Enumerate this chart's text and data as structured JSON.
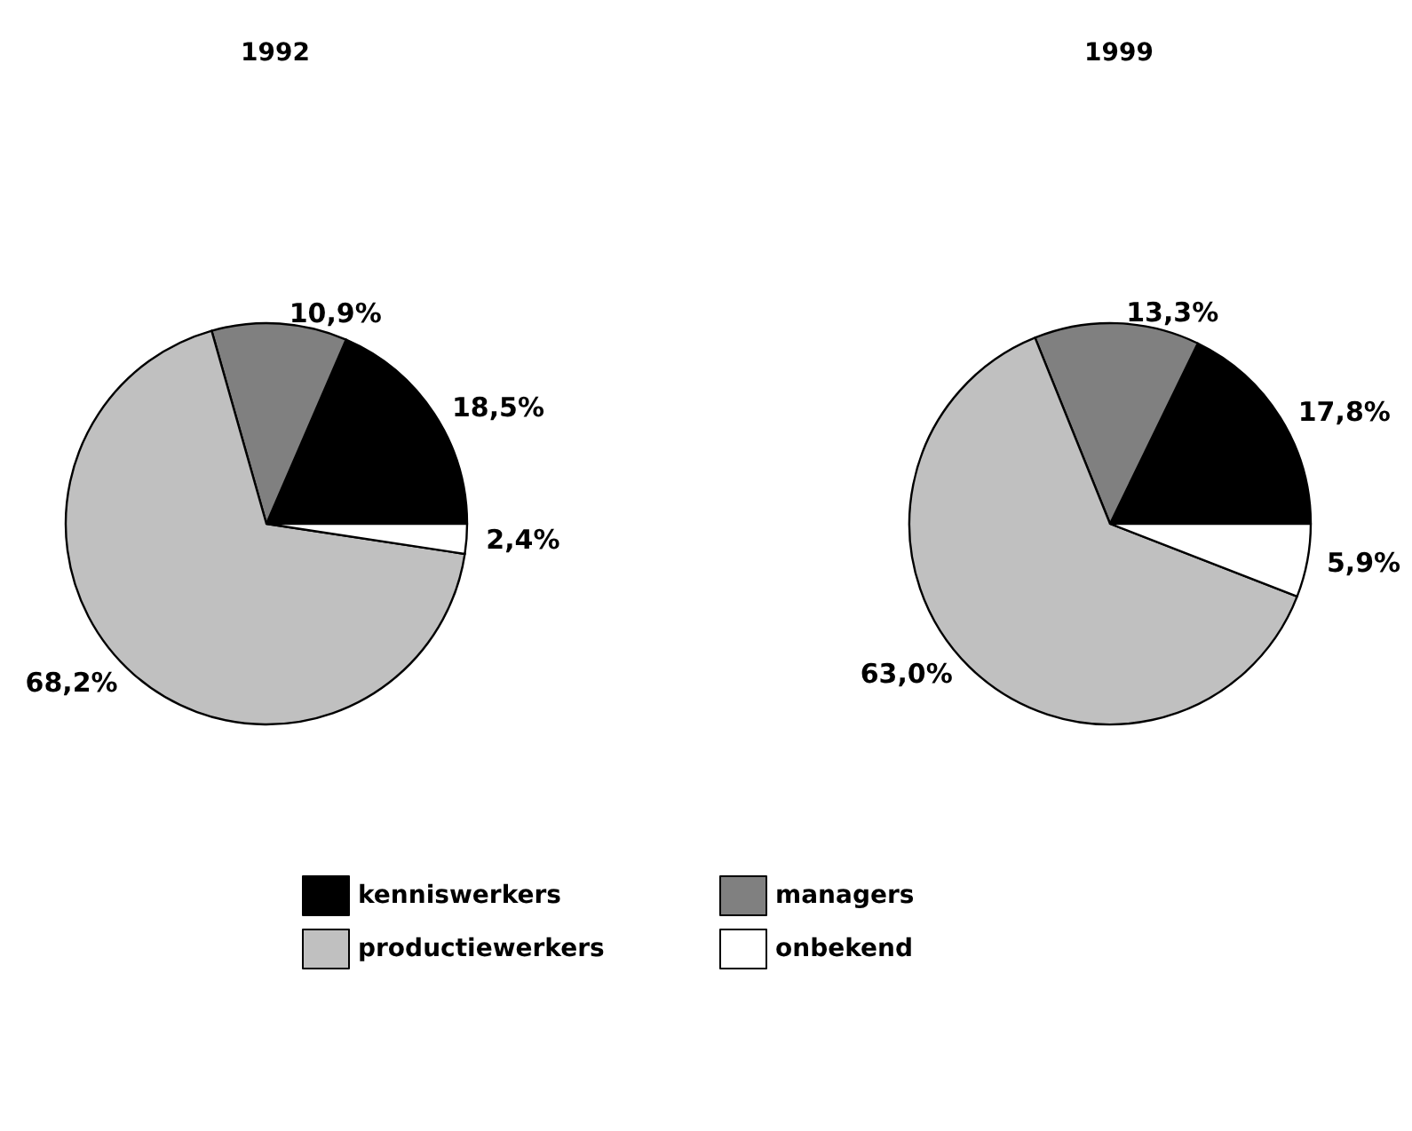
{
  "chart_data": [
    {
      "type": "pie",
      "title": "1992",
      "categories": [
        "kenniswerkers",
        "managers",
        "productiewerkers",
        "onbekend"
      ],
      "values": [
        18.5,
        10.9,
        68.2,
        2.4
      ],
      "value_labels": [
        "18,5%",
        "10,9%",
        "68,2%",
        "2,4%"
      ],
      "colors": [
        "#000000",
        "#808080",
        "#c0c0c0",
        "#ffffff"
      ],
      "legend": "bottom"
    },
    {
      "type": "pie",
      "title": "1999",
      "categories": [
        null,
        null,
        null,
        null
      ],
      "values": [
        17.8,
        13.3,
        63.0,
        5.9
      ],
      "value_labels": [
        "17,8%",
        "13,3%",
        "63,0%",
        "5,9%"
      ],
      "colors": [
        "#000000",
        "#808080",
        "#c0c0c0",
        "#ffffff"
      ],
      "legend": false
    }
  ]
}
